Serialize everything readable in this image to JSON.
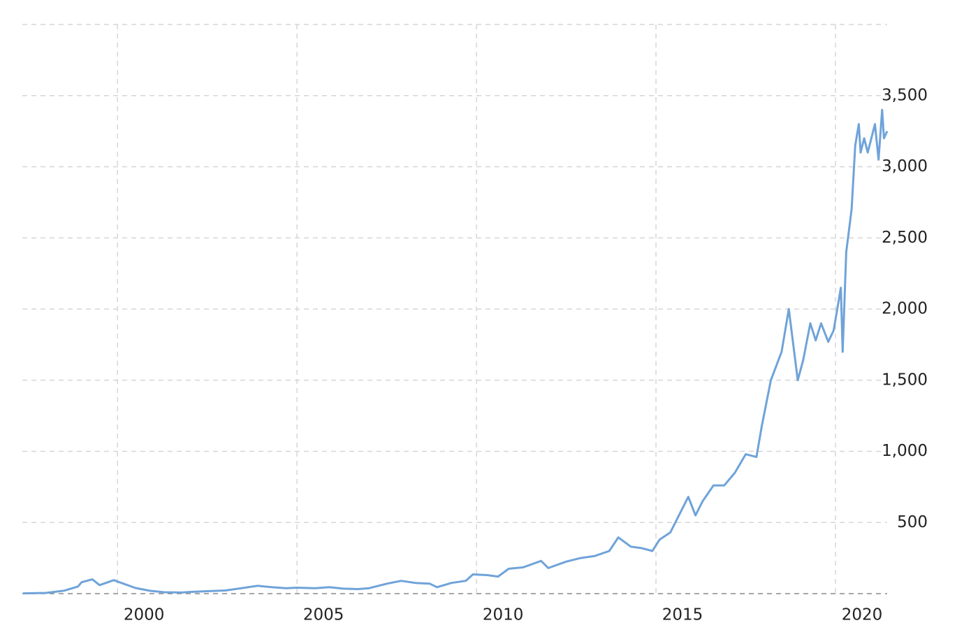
{
  "chart_data": {
    "type": "line",
    "x": [
      1997.37,
      1998.0,
      1998.5,
      1998.9,
      1999.0,
      1999.3,
      1999.5,
      1999.9,
      2000.0,
      2000.5,
      2000.9,
      2001.3,
      2001.8,
      2002.0,
      2002.5,
      2003.0,
      2003.5,
      2003.9,
      2004.3,
      2004.7,
      2005.0,
      2005.5,
      2005.9,
      2006.3,
      2006.7,
      2007.0,
      2007.5,
      2007.9,
      2008.3,
      2008.7,
      2008.9,
      2009.3,
      2009.7,
      2009.9,
      2010.3,
      2010.6,
      2010.9,
      2011.3,
      2011.8,
      2012.0,
      2012.5,
      2012.9,
      2013.3,
      2013.7,
      2013.95,
      2014.3,
      2014.6,
      2014.9,
      2015.1,
      2015.4,
      2015.6,
      2015.9,
      2016.1,
      2016.3,
      2016.6,
      2016.9,
      2017.2,
      2017.5,
      2017.8,
      2017.95,
      2018.2,
      2018.5,
      2018.7,
      2018.85,
      2018.95,
      2019.1,
      2019.3,
      2019.45,
      2019.6,
      2019.8,
      2019.95,
      2020.05,
      2020.15,
      2020.2,
      2020.3,
      2020.45,
      2020.55,
      2020.65,
      2020.7,
      2020.8,
      2020.9,
      2021.0,
      2021.1,
      2021.2,
      2021.3,
      2021.35,
      2021.44
    ],
    "series": [
      {
        "color": "#6fa3d9",
        "values": [
          2,
          5,
          20,
          50,
          80,
          100,
          60,
          95,
          85,
          40,
          20,
          10,
          8,
          12,
          17,
          22,
          40,
          55,
          45,
          38,
          42,
          38,
          45,
          35,
          32,
          38,
          70,
          90,
          75,
          70,
          45,
          75,
          90,
          135,
          130,
          120,
          175,
          185,
          230,
          180,
          225,
          250,
          265,
          300,
          395,
          330,
          320,
          300,
          380,
          430,
          530,
          680,
          550,
          650,
          760,
          760,
          850,
          980,
          960,
          1180,
          1500,
          1700,
          2000,
          1700,
          1500,
          1640,
          1900,
          1780,
          1900,
          1770,
          1850,
          2000,
          2150,
          1700,
          2400,
          2700,
          3150,
          3300,
          3100,
          3200,
          3100,
          3200,
          3300,
          3050,
          3400,
          3200,
          3250
        ]
      }
    ],
    "xlim": [
      1997.35,
      2021.44
    ],
    "xticks": [
      2000,
      2005,
      2010,
      2015,
      2020
    ],
    "ylim": [
      0,
      4000
    ],
    "yticks": [
      500,
      {
        "value": 1000,
        "label": "1,000"
      },
      {
        "value": 1500,
        "label": "1,500"
      },
      {
        "value": 2000,
        "label": "2,000"
      },
      {
        "value": 2500,
        "label": "2,500"
      },
      {
        "value": 3000,
        "label": "3,000"
      },
      {
        "value": 3500,
        "label": "3,500"
      }
    ],
    "grid": true
  }
}
